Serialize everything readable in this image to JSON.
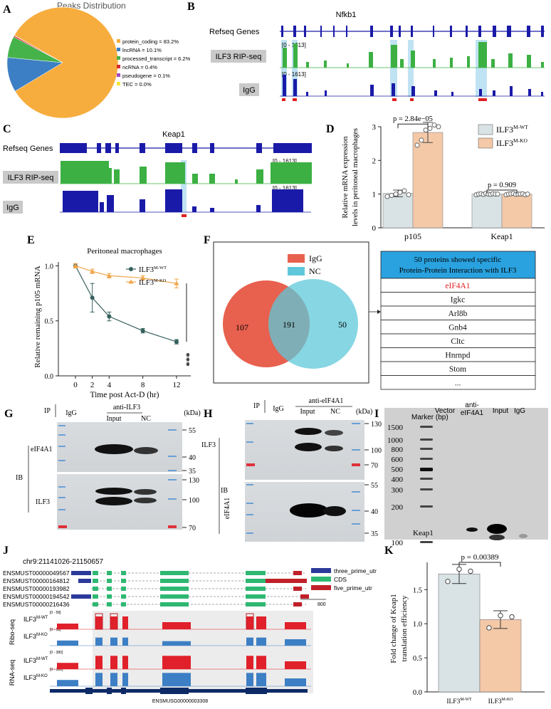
{
  "panel_labels": {
    "A": "A",
    "B": "B",
    "C": "C",
    "D": "D",
    "E": "E",
    "F": "F",
    "G": "G",
    "H": "H",
    "I": "I",
    "J": "J",
    "K": "K"
  },
  "colors": {
    "wt": "#d9e3e5",
    "ko": "#f4c9a8",
    "igg": "#e8604e",
    "nc": "#5ec8da",
    "rip": "#3cb043",
    "track": "#1a1aa8",
    "highlight": "#bfe3f2",
    "ribo_wt": "#e0202a",
    "ribo_ko": "#3d7fc4"
  },
  "panel_a": {
    "chart_data": {
      "type": "pie",
      "title": "Peaks Distribution",
      "slices": [
        {
          "label": "protein_coding = 83.2%",
          "value": 83.2,
          "color": "#f7ad3e"
        },
        {
          "label": "lncRNA = 10.1%",
          "value": 10.1,
          "color": "#3d7fc4"
        },
        {
          "label": "processed_transcript = 6.2%",
          "value": 6.2,
          "color": "#45b34a"
        },
        {
          "label": "ncRNA = 0.4%",
          "value": 0.4,
          "color": "#d92a2a"
        },
        {
          "label": "pseudogene = 0.1%",
          "value": 0.1,
          "color": "#a349c2"
        },
        {
          "label": "TEC = 0.0%",
          "value": 0.0,
          "color": "#f2e536"
        }
      ]
    }
  },
  "panel_b": {
    "gene": "Nfkb1",
    "refseq_label": "Refseq Genes",
    "rip_label": "ILF3 RIP-seq",
    "igg_label": "IgG",
    "range_label": "[0 - 1613]"
  },
  "panel_c": {
    "gene": "Keap1",
    "refseq_label": "Refseq Genes",
    "rip_label": "ILF3 RIP-seq",
    "igg_label": "IgG",
    "range_label": "[0 - 1613]"
  },
  "panel_d": {
    "chart_data": {
      "type": "bar",
      "ylabel": [
        "Relative mRNA expression",
        "levels in peritoneal macrophages"
      ],
      "categories": [
        "p105",
        "Keap1"
      ],
      "ylim": [
        0,
        3
      ],
      "yticks": [
        "0",
        "1",
        "2",
        "3"
      ],
      "series": [
        {
          "name": "ILF3",
          "sup": "M-WT",
          "values": [
            1.02,
            1.0
          ],
          "errors": [
            0.1,
            0.03
          ],
          "points": [
            [
              0.93,
              0.96,
              1.0,
              1.05,
              1.1,
              0.98
            ],
            [
              0.98,
              1.0,
              1.01,
              0.99,
              1.02,
              1.0,
              0.99,
              1.01,
              1.0,
              1.0
            ]
          ]
        },
        {
          "name": "ILF3",
          "sup": "M-KO",
          "values": [
            2.83,
            1.0
          ],
          "errors": [
            0.3,
            0.03
          ],
          "points": [
            [
              2.45,
              2.6,
              2.9,
              2.95,
              3.05,
              3.0
            ],
            [
              0.98,
              1.0,
              1.01,
              1.02,
              0.99,
              1.0,
              1.0,
              1.01,
              0.98,
              1.0
            ]
          ]
        }
      ],
      "annotations": [
        "p = 2.84e−05",
        "p = 0.909"
      ]
    }
  },
  "panel_e": {
    "chart_data": {
      "type": "line",
      "title": "Peritoneal macrophages",
      "xlabel": "Time post Act-D (hr)",
      "ylabel": "Relative remaining p105 mRNA",
      "x": [
        0,
        2,
        4,
        8,
        12
      ],
      "xticks": [
        "0",
        "2",
        "4",
        "8",
        "12"
      ],
      "ylim": [
        0,
        1.1
      ],
      "yticks": [
        "0.0",
        "0.5",
        "1.0"
      ],
      "series": [
        {
          "name": "ILF3",
          "sup": "M-WT",
          "values": [
            1.0,
            0.71,
            0.54,
            0.41,
            0.31
          ],
          "errors": [
            0.02,
            0.13,
            0.04,
            0.02,
            0.02
          ],
          "marker": "circle",
          "color": "#35605c"
        },
        {
          "name": "ILF3",
          "sup": "M-KO",
          "values": [
            1.0,
            0.95,
            0.91,
            0.89,
            0.84
          ],
          "errors": [
            0.02,
            0.02,
            0.02,
            0.02,
            0.04
          ],
          "marker": "triangle",
          "color": "#f0a54a"
        }
      ],
      "significance": "***"
    }
  },
  "panel_f": {
    "venn": {
      "legend": [
        "IgG",
        "NC"
      ],
      "igg_only": "107",
      "overlap": "191",
      "nc_only": "50"
    },
    "table": {
      "header": [
        "50 proteins showed specific",
        "Protein-Protein Interaction with ILF3"
      ],
      "rows": [
        "eIF4A1",
        "Igkc",
        "Arl8b",
        "Gnb4",
        "Cltc",
        "Hnrnpd",
        "Stom",
        "..."
      ]
    }
  },
  "panel_g": {
    "ip_label": "IP",
    "antibody": "anti-ILF3",
    "lanes": [
      "IgG",
      "Input",
      "NC"
    ],
    "kda": "(kDa)",
    "ib_label": "IB",
    "targets": [
      "eIF4A1",
      "ILF3"
    ],
    "markers": [
      "55",
      "40",
      "35",
      "130",
      "100",
      "70"
    ]
  },
  "panel_h": {
    "ip_label": "IP",
    "antibody": "anti-eIF4A1",
    "lanes": [
      "IgG",
      "Input",
      "NC"
    ],
    "kda": "(kDa)",
    "ib_label": "IB",
    "targets": [
      "ILF3",
      "eIF4A1"
    ],
    "markers": [
      "130",
      "100",
      "70",
      "55",
      "40",
      "35"
    ]
  },
  "panel_i": {
    "marker_label": "Marker (bp)",
    "lanes": [
      "Vector",
      "anti-",
      "eIF4A1",
      "Input",
      "IgG"
    ],
    "ladder": [
      "1500",
      "1000",
      "800",
      "600",
      "500",
      "400",
      "300",
      "200",
      "100"
    ],
    "band_label": "Keap1"
  },
  "panel_j": {
    "locus": "chr9:21141026-21150657",
    "transcripts": [
      "ENSMUST00000049567",
      "ENSMUST00000164812",
      "ENSMUST00000193982",
      "ENSMUST00000194542",
      "ENSMUST00000216436"
    ],
    "legend": [
      {
        "label": "three_prime_utr",
        "color": "#2b3a9a"
      },
      {
        "label": "CDS",
        "color": "#2eb872"
      },
      {
        "label": "five_prime_utr",
        "color": "#c0202a"
      }
    ],
    "scale_label": "800",
    "tracks": {
      "ribo": "Ribo-seq",
      "rna": "RNA-seq"
    },
    "genotypes": [
      {
        "base": "ILF3",
        "sup": "M-WT"
      },
      {
        "base": "ILF3",
        "sup": "M-KO"
      }
    ],
    "ranges": {
      "ribo": "[0 - 58]",
      "rna": "[0 - 380]"
    },
    "gene_id": "ENSMUSG00000003308"
  },
  "panel_k": {
    "chart_data": {
      "type": "bar",
      "ylabel": [
        "Fold change of Keap1",
        "translation efficiency"
      ],
      "categories": [
        {
          "base": "ILF3",
          "sup": "M-WT"
        },
        {
          "base": "ILF3",
          "sup": "M-KO"
        }
      ],
      "values": [
        1.73,
        1.06
      ],
      "errors": [
        0.14,
        0.13
      ],
      "points": [
        [
          1.62,
          1.8,
          1.77
        ],
        [
          0.94,
          1.12,
          1.1
        ]
      ],
      "ylim": [
        0,
        1.9
      ],
      "yticks": [
        "0.0",
        "0.5",
        "1.0",
        "1.5"
      ],
      "annotation": "p = 0.00389"
    }
  }
}
